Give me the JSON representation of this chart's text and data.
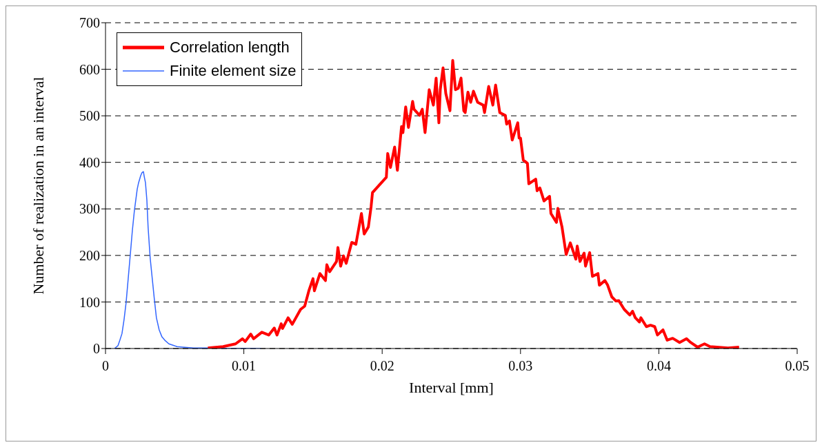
{
  "chart_data": {
    "type": "line",
    "xlabel": "Interval [mm]",
    "ylabel": "Number of realization in an interval",
    "xlim": [
      0,
      0.05
    ],
    "xticks": [
      0,
      0.01,
      0.02,
      0.03,
      0.04,
      0.05
    ],
    "ylim": [
      0,
      700
    ],
    "yticks": [
      0,
      100,
      200,
      300,
      400,
      500,
      600,
      700
    ],
    "grid": "y",
    "legend": "top left",
    "marker": "none",
    "series": [
      {
        "name": "Correlation length",
        "color": "#ff0000",
        "x": [
          0.0074,
          0.0085,
          0.0094,
          0.0099,
          0.0101,
          0.0105,
          0.0107,
          0.0113,
          0.0118,
          0.0122,
          0.0124,
          0.0127,
          0.0128,
          0.0132,
          0.0135,
          0.0141,
          0.0144,
          0.0147,
          0.015,
          0.0151,
          0.0155,
          0.0159,
          0.016,
          0.0162,
          0.0167,
          0.0168,
          0.017,
          0.0172,
          0.0174,
          0.0178,
          0.0181,
          0.0185,
          0.0187,
          0.019,
          0.0192,
          0.0193,
          0.0203,
          0.0204,
          0.0206,
          0.0209,
          0.0211,
          0.0214,
          0.0215,
          0.0217,
          0.0219,
          0.0222,
          0.0223,
          0.0227,
          0.0229,
          0.0231,
          0.0234,
          0.0237,
          0.0239,
          0.0241,
          0.0242,
          0.0244,
          0.0246,
          0.0249,
          0.0251,
          0.0253,
          0.0255,
          0.0257,
          0.0259,
          0.026,
          0.0262,
          0.0264,
          0.0266,
          0.0269,
          0.0273,
          0.0274,
          0.0277,
          0.028,
          0.0282,
          0.0285,
          0.0289,
          0.029,
          0.0292,
          0.0294,
          0.0298,
          0.0299,
          0.03,
          0.0302,
          0.0305,
          0.0306,
          0.0311,
          0.0312,
          0.0314,
          0.0317,
          0.0321,
          0.0322,
          0.0326,
          0.0327,
          0.033,
          0.0333,
          0.0336,
          0.034,
          0.0341,
          0.0343,
          0.0346,
          0.0347,
          0.035,
          0.0352,
          0.0356,
          0.0357,
          0.0361,
          0.0363,
          0.0366,
          0.0369,
          0.0371,
          0.0375,
          0.0379,
          0.0381,
          0.0383,
          0.0386,
          0.0387,
          0.0391,
          0.0394,
          0.0397,
          0.0399,
          0.0403,
          0.0406,
          0.041,
          0.0415,
          0.042,
          0.0423,
          0.0428,
          0.0433,
          0.0437,
          0.0442,
          0.045,
          0.0458
        ],
        "values": [
          1,
          4,
          10,
          21,
          15,
          31,
          21,
          35,
          29,
          44,
          29,
          53,
          43,
          66,
          52,
          84,
          91,
          124,
          150,
          124,
          161,
          146,
          180,
          165,
          187,
          217,
          177,
          199,
          183,
          228,
          224,
          290,
          246,
          261,
          305,
          335,
          368,
          419,
          389,
          433,
          383,
          477,
          464,
          519,
          475,
          531,
          514,
          501,
          514,
          464,
          556,
          523,
          581,
          485,
          556,
          603,
          548,
          511,
          619,
          556,
          559,
          581,
          511,
          507,
          551,
          529,
          553,
          529,
          523,
          507,
          563,
          523,
          566,
          507,
          501,
          482,
          489,
          448,
          485,
          452,
          452,
          405,
          398,
          354,
          364,
          339,
          345,
          317,
          327,
          290,
          271,
          301,
          261,
          202,
          227,
          192,
          220,
          187,
          205,
          177,
          206,
          155,
          161,
          136,
          146,
          136,
          111,
          102,
          103,
          84,
          72,
          80,
          66,
          57,
          66,
          47,
          50,
          47,
          29,
          40,
          18,
          22,
          13,
          21,
          13,
          3,
          10,
          4,
          3,
          1,
          3
        ]
      },
      {
        "name": "Finite element size",
        "color": "#3366ff",
        "x": [
          0.00065,
          0.0009,
          0.00104,
          0.00119,
          0.00134,
          0.00149,
          0.00164,
          0.00179,
          0.00194,
          0.00209,
          0.00219,
          0.00229,
          0.00239,
          0.00254,
          0.00264,
          0.00274,
          0.00279,
          0.00289,
          0.00299,
          0.00308,
          0.00323,
          0.00338,
          0.00353,
          0.00368,
          0.00388,
          0.00408,
          0.00428,
          0.00458,
          0.00488,
          0.00517,
          0.00557,
          0.00637,
          0.00736,
          0.00886,
          0.01124
        ],
        "values": [
          0,
          6,
          18,
          32,
          62,
          99,
          150,
          201,
          253,
          297,
          319,
          342,
          356,
          371,
          378,
          380,
          371,
          356,
          319,
          260,
          194,
          150,
          106,
          66,
          40,
          25,
          18,
          10,
          7,
          4,
          3,
          1,
          1,
          0,
          0
        ]
      }
    ]
  }
}
